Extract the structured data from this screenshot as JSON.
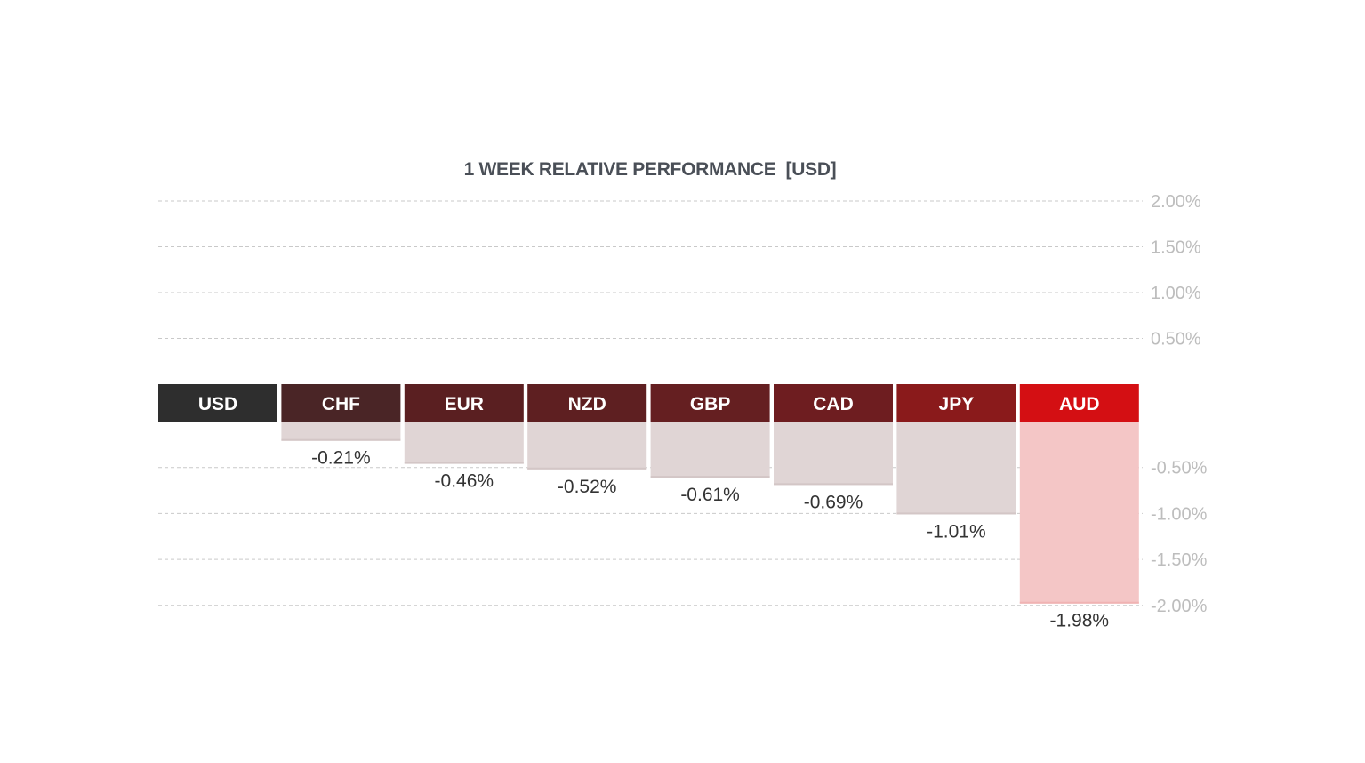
{
  "chart_data": {
    "type": "bar",
    "title": "1 WEEK RELATIVE PERFORMANCE  [USD]",
    "categories": [
      "USD",
      "CHF",
      "EUR",
      "NZD",
      "GBP",
      "CAD",
      "JPY",
      "AUD"
    ],
    "values": [
      0,
      -0.21,
      -0.46,
      -0.52,
      -0.61,
      -0.69,
      -1.01,
      -1.98
    ],
    "value_labels": [
      "",
      "-0.21%",
      "-0.46%",
      "-0.52%",
      "-0.61%",
      "-0.69%",
      "-1.01%",
      "-1.98%"
    ],
    "header_colors": [
      "#2e2e2e",
      "#4a2526",
      "#5a1f21",
      "#5e1f21",
      "#651f21",
      "#6e1d20",
      "#8a1a1b",
      "#d40f13"
    ],
    "bar_colors": [
      "#e0d5d5",
      "#e0d5d5",
      "#e0d5d5",
      "#e0d5d5",
      "#e0d5d5",
      "#e0d5d5",
      "#e0d5d5",
      "#f4c6c6"
    ],
    "label_colors": [
      "#333333",
      "#333333",
      "#333333",
      "#333333",
      "#333333",
      "#333333",
      "#333333",
      "#d40f13"
    ],
    "y_ticks_positive": [
      "2.00%",
      "1.50%",
      "1.00%",
      "0.50%"
    ],
    "y_ticks_negative": [
      "-0.50%",
      "-1.00%",
      "-1.50%",
      "-2.00%"
    ],
    "ylim": [
      -2,
      2
    ],
    "grid": true
  }
}
